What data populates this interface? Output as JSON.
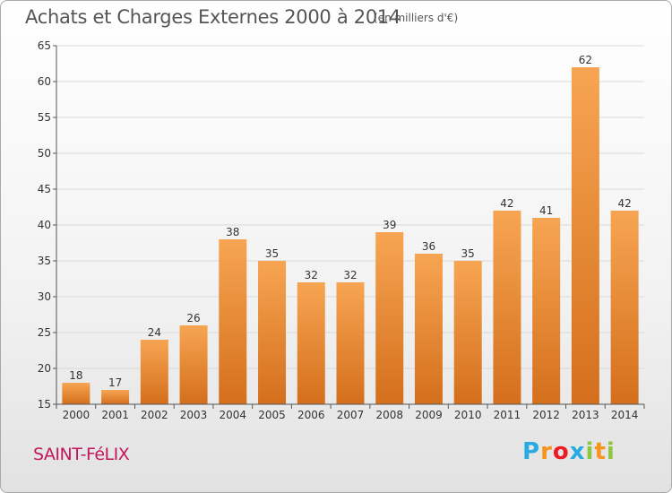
{
  "header": {
    "title": "Achats et Charges Externes 2000 à 2014",
    "unit": "(en milliers d'€)"
  },
  "footer": {
    "commune": "SAINT-FéLIX",
    "logo_letters": [
      "P",
      "r",
      "o",
      "x",
      "i",
      "t",
      "i"
    ],
    "logo_colors": [
      "#29abe2",
      "#f7941d",
      "#ed1c24",
      "#29abe2",
      "#8dc63f",
      "#f7941d",
      "#8dc63f"
    ]
  },
  "colors": {
    "bar_light": "#f7a552",
    "bar_dark": "#d46f1c",
    "axis": "#555555",
    "grid": "#d9d9d9"
  },
  "chart_data": {
    "type": "bar",
    "categories": [
      "2000",
      "2001",
      "2002",
      "2003",
      "2004",
      "2005",
      "2006",
      "2007",
      "2008",
      "2009",
      "2010",
      "2011",
      "2012",
      "2013",
      "2014"
    ],
    "values": [
      18,
      17,
      24,
      26,
      38,
      35,
      32,
      32,
      39,
      36,
      35,
      42,
      41,
      62,
      42
    ],
    "title": "Achats et Charges Externes 2000 à 2014",
    "ylim": [
      15,
      65
    ],
    "yticks": [
      15,
      20,
      25,
      30,
      35,
      40,
      45,
      50,
      55,
      60,
      65
    ],
    "grid": true,
    "data_labels": true
  }
}
